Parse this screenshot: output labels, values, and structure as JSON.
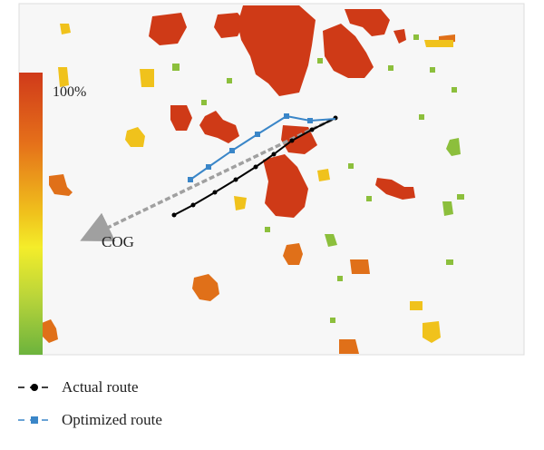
{
  "map": {
    "scale_label": "100%",
    "cog_label": "COG",
    "scale_colors": [
      "#d03a1a",
      "#e5701a",
      "#f0c21c",
      "#f4ed2a",
      "#b8d43a",
      "#6cb33d"
    ],
    "background": "#f7f7f7",
    "actual_route_color": "#000000",
    "optimized_route_color": "#3a86c8",
    "cog_color": "#a0a0a0"
  },
  "legend": {
    "actual_label": "Actual route",
    "optimized_label": "Optimized route"
  }
}
